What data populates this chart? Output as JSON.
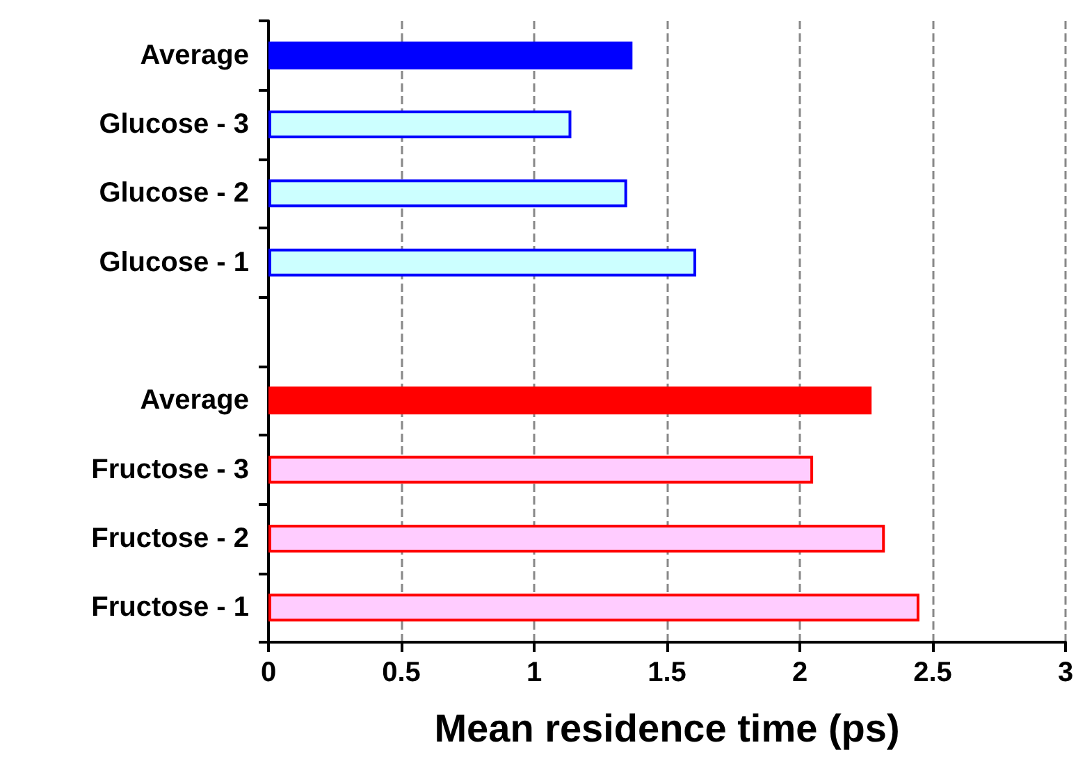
{
  "chart_data": {
    "type": "bar",
    "orientation": "horizontal",
    "xlabel": "Mean residence time (ps)",
    "categories": [
      "Average",
      "Glucose - 3",
      "Glucose - 2",
      "Glucose - 1",
      null,
      "Average",
      "Fructose - 3",
      "Fructose - 2",
      "Fructose - 1"
    ],
    "series": [
      {
        "color": "#0000ff",
        "colors": [
          "#0000ff",
          "#ccffff",
          "#ccffff",
          "#ccffff",
          null,
          null,
          null,
          null,
          null
        ],
        "values": [
          1.37,
          1.14,
          1.35,
          1.61,
          null,
          null,
          null,
          null,
          null
        ]
      },
      {
        "color": "#ff0000",
        "colors": [
          null,
          null,
          null,
          null,
          null,
          "#ff0000",
          "#ffccff",
          "#ffccff",
          "#ffccff"
        ],
        "values": [
          null,
          null,
          null,
          null,
          null,
          2.27,
          2.05,
          2.32,
          2.45
        ]
      }
    ],
    "xlim": [
      0,
      3
    ],
    "xticks": [
      0,
      0.5,
      1,
      1.5,
      2,
      2.5,
      3
    ],
    "grid": "x"
  }
}
